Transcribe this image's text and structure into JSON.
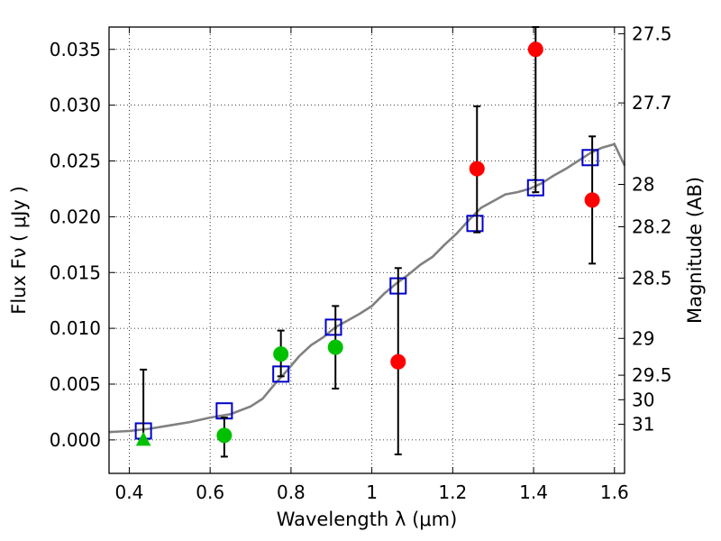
{
  "chart_data": {
    "type": "scatter",
    "xlabel": "Wavelength  λ (μm)",
    "ylabel": "Flux  Fν  ( μJy )",
    "ylabel_right": "Magnitude (AB)",
    "xlim": [
      0.35,
      1.625
    ],
    "ylim": [
      -0.003,
      0.037
    ],
    "x_ticks": [
      0.4,
      0.6,
      0.8,
      1.0,
      1.2,
      1.4,
      1.6
    ],
    "x_tick_labels": [
      "0.4",
      "0.6",
      "0.8",
      "1",
      "1.2",
      "1.4",
      "1.6"
    ],
    "y_ticks": [
      0.0,
      0.005,
      0.01,
      0.015,
      0.02,
      0.025,
      0.03,
      0.035
    ],
    "y_tick_labels": [
      "0.000",
      "0.005",
      "0.010",
      "0.015",
      "0.020",
      "0.025",
      "0.030",
      "0.035"
    ],
    "right_ticks": [
      {
        "label": "27.5",
        "flux": 0.0364
      },
      {
        "label": "27.7",
        "flux": 0.0302
      },
      {
        "label": "28",
        "flux": 0.0229
      },
      {
        "label": "28.2",
        "flux": 0.0191
      },
      {
        "label": "28.5",
        "flux": 0.0145
      },
      {
        "label": "29",
        "flux": 0.0091
      },
      {
        "label": "29.5",
        "flux": 0.0058
      },
      {
        "label": "30",
        "flux": 0.0036
      },
      {
        "label": "31",
        "flux": 0.0014
      }
    ],
    "grid": true,
    "colors": {
      "model": "#808080",
      "measured_red": "#ff0000",
      "measured_green": "#00c000",
      "model_box": "#0000cc",
      "errorbar": "#000000"
    },
    "model_spectrum": {
      "x": [
        0.35,
        0.4,
        0.45,
        0.5,
        0.55,
        0.6,
        0.65,
        0.7,
        0.73,
        0.76,
        0.79,
        0.82,
        0.85,
        0.88,
        0.91,
        0.94,
        0.97,
        1.0,
        1.03,
        1.06,
        1.09,
        1.12,
        1.15,
        1.18,
        1.21,
        1.24,
        1.27,
        1.3,
        1.33,
        1.36,
        1.39,
        1.42,
        1.45,
        1.48,
        1.51,
        1.54,
        1.57,
        1.6,
        1.625
      ],
      "y": [
        0.0007,
        0.0008,
        0.001,
        0.0013,
        0.0016,
        0.002,
        0.0023,
        0.003,
        0.0037,
        0.005,
        0.0062,
        0.0075,
        0.0085,
        0.0092,
        0.0101,
        0.0107,
        0.0113,
        0.012,
        0.0131,
        0.014,
        0.0148,
        0.0157,
        0.0164,
        0.0175,
        0.0185,
        0.0197,
        0.0208,
        0.0214,
        0.022,
        0.0222,
        0.0225,
        0.023,
        0.0237,
        0.0243,
        0.025,
        0.0257,
        0.0262,
        0.0265,
        0.0246
      ]
    },
    "measurements": [
      {
        "x": 0.435,
        "y": 0.0,
        "yerr_low": 0.0,
        "yerr_high": 0.0063,
        "color": "green",
        "marker": "triangle"
      },
      {
        "x": 0.635,
        "y": 0.0004,
        "yerr_low": -0.0015,
        "yerr_high": 0.002,
        "color": "green",
        "marker": "circle"
      },
      {
        "x": 0.775,
        "y": 0.0077,
        "yerr_low": 0.0057,
        "yerr_high": 0.0098,
        "color": "green",
        "marker": "circle"
      },
      {
        "x": 0.91,
        "y": 0.0083,
        "yerr_low": 0.0046,
        "yerr_high": 0.012,
        "color": "green",
        "marker": "circle"
      },
      {
        "x": 1.065,
        "y": 0.007,
        "yerr_low": -0.0013,
        "yerr_high": 0.0154,
        "color": "red",
        "marker": "circle"
      },
      {
        "x": 1.26,
        "y": 0.0243,
        "yerr_low": 0.0186,
        "yerr_high": 0.0299,
        "color": "red",
        "marker": "circle"
      },
      {
        "x": 1.405,
        "y": 0.035,
        "yerr_low": 0.0222,
        "yerr_high": 0.037,
        "color": "red",
        "marker": "circle"
      },
      {
        "x": 1.545,
        "y": 0.0215,
        "yerr_low": 0.0158,
        "yerr_high": 0.0272,
        "color": "red",
        "marker": "circle"
      }
    ],
    "model_boxes": [
      {
        "x": 0.435,
        "y": 0.0008
      },
      {
        "x": 0.635,
        "y": 0.0026
      },
      {
        "x": 0.775,
        "y": 0.0059
      },
      {
        "x": 0.905,
        "y": 0.0101
      },
      {
        "x": 1.065,
        "y": 0.0138
      },
      {
        "x": 1.255,
        "y": 0.0194
      },
      {
        "x": 1.405,
        "y": 0.0226
      },
      {
        "x": 1.54,
        "y": 0.0253
      }
    ]
  }
}
